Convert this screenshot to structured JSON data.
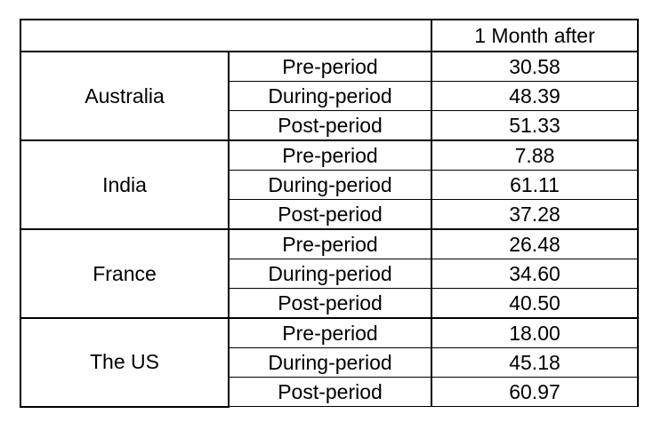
{
  "table": {
    "header": {
      "corner": "",
      "value_column": "1 Month after"
    },
    "groups": [
      {
        "country": "Australia",
        "rows": [
          {
            "period": "Pre-period",
            "value": "30.58"
          },
          {
            "period": "During-period",
            "value": "48.39"
          },
          {
            "period": "Post-period",
            "value": "51.33"
          }
        ]
      },
      {
        "country": "India",
        "rows": [
          {
            "period": "Pre-period",
            "value": "7.88"
          },
          {
            "period": "During-period",
            "value": "61.11"
          },
          {
            "period": "Post-period",
            "value": "37.28"
          }
        ]
      },
      {
        "country": "France",
        "rows": [
          {
            "period": "Pre-period",
            "value": "26.48"
          },
          {
            "period": "During-period",
            "value": "34.60"
          },
          {
            "period": "Post-period",
            "value": "40.50"
          }
        ]
      },
      {
        "country": "The US",
        "rows": [
          {
            "period": "Pre-period",
            "value": "18.00"
          },
          {
            "period": "During-period",
            "value": "45.18"
          },
          {
            "period": "Post-period",
            "value": "60.97"
          }
        ]
      }
    ]
  }
}
